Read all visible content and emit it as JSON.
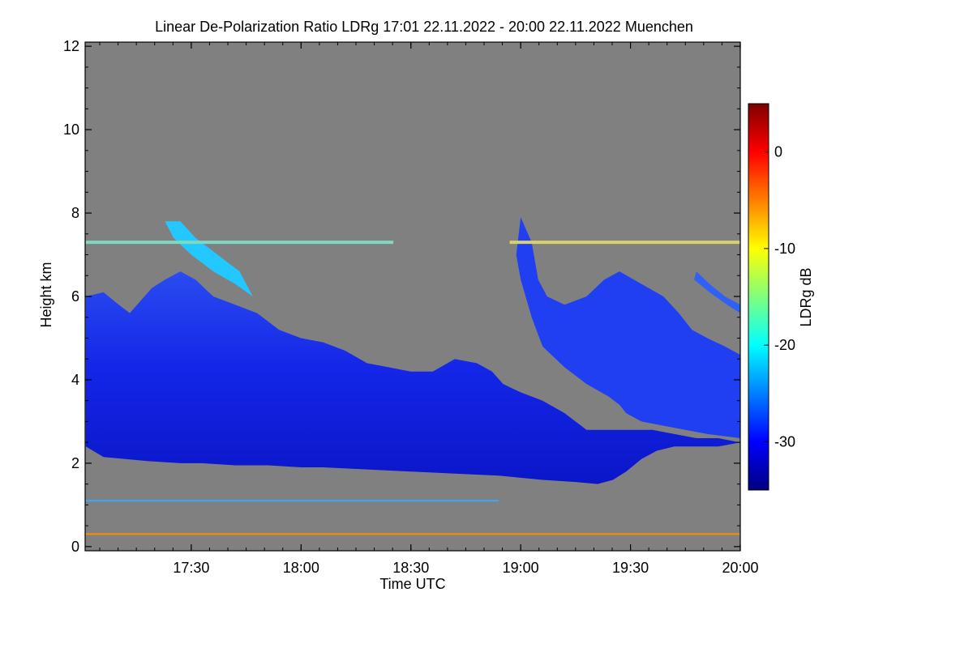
{
  "chart_data": {
    "type": "heatmap",
    "title": "Linear De-Polarization Ratio LDRg   17:01 22.11.2022 - 20:00 22.11.2022 Muenchen",
    "xlabel": "Time UTC",
    "ylabel": "Height km",
    "xlim_hours": [
      17.0167,
      20.0
    ],
    "ylim_km": [
      -0.1,
      12.1
    ],
    "x_ticks": [
      {
        "label": "17:30",
        "value": 17.5
      },
      {
        "label": "18:00",
        "value": 18.0
      },
      {
        "label": "18:30",
        "value": 18.5
      },
      {
        "label": "19:00",
        "value": 19.0
      },
      {
        "label": "19:30",
        "value": 19.5
      },
      {
        "label": "20:00",
        "value": 20.0
      }
    ],
    "y_ticks": [
      {
        "label": "0",
        "value": 0
      },
      {
        "label": "2",
        "value": 2
      },
      {
        "label": "4",
        "value": 4
      },
      {
        "label": "6",
        "value": 6
      },
      {
        "label": "8",
        "value": 8
      },
      {
        "label": "10",
        "value": 10
      },
      {
        "label": "12",
        "value": 12
      }
    ],
    "colorbar": {
      "label": "LDRg dB",
      "range": [
        -35,
        5
      ],
      "ticks": [
        {
          "label": "0",
          "value": 0
        },
        {
          "label": "-10",
          "value": -10
        },
        {
          "label": "-20",
          "value": -20
        },
        {
          "label": "-30",
          "value": -30
        }
      ],
      "colors": [
        "#00007f",
        "#0000ff",
        "#007fff",
        "#00ffff",
        "#7fff7f",
        "#ffff00",
        "#ff7f00",
        "#ff0000",
        "#7f0000"
      ]
    },
    "background_color": "#808080",
    "features": [
      {
        "name": "main-cloud-layer",
        "ldr_db": -31,
        "color": "#1f2fe6",
        "top_km": [
          [
            17.02,
            6.0
          ],
          [
            17.1,
            6.1
          ],
          [
            17.17,
            5.8
          ],
          [
            17.22,
            5.6
          ],
          [
            17.27,
            5.9
          ],
          [
            17.32,
            6.2
          ],
          [
            17.38,
            6.4
          ],
          [
            17.45,
            6.6
          ],
          [
            17.52,
            6.4
          ],
          [
            17.6,
            6.0
          ],
          [
            17.7,
            5.8
          ],
          [
            17.8,
            5.6
          ],
          [
            17.9,
            5.2
          ],
          [
            18.0,
            5.0
          ],
          [
            18.1,
            4.9
          ],
          [
            18.2,
            4.7
          ],
          [
            18.3,
            4.4
          ],
          [
            18.4,
            4.3
          ],
          [
            18.5,
            4.2
          ],
          [
            18.6,
            4.2
          ],
          [
            18.7,
            4.5
          ],
          [
            18.8,
            4.4
          ],
          [
            18.87,
            4.2
          ],
          [
            18.92,
            3.9
          ],
          [
            19.0,
            3.7
          ],
          [
            19.1,
            3.5
          ],
          [
            19.2,
            3.2
          ],
          [
            19.3,
            2.8
          ],
          [
            19.4,
            2.8
          ],
          [
            19.5,
            2.8
          ],
          [
            19.6,
            2.8
          ],
          [
            19.7,
            2.7
          ],
          [
            19.8,
            2.6
          ],
          [
            19.9,
            2.6
          ],
          [
            20.0,
            2.5
          ]
        ],
        "base_km": [
          [
            20.0,
            2.5
          ],
          [
            19.9,
            2.4
          ],
          [
            19.8,
            2.4
          ],
          [
            19.7,
            2.4
          ],
          [
            19.62,
            2.3
          ],
          [
            19.55,
            2.1
          ],
          [
            19.48,
            1.8
          ],
          [
            19.42,
            1.6
          ],
          [
            19.35,
            1.5
          ],
          [
            19.25,
            1.55
          ],
          [
            19.1,
            1.6
          ],
          [
            19.0,
            1.65
          ],
          [
            18.9,
            1.7
          ],
          [
            18.7,
            1.75
          ],
          [
            18.5,
            1.8
          ],
          [
            18.3,
            1.85
          ],
          [
            18.1,
            1.9
          ],
          [
            18.0,
            1.9
          ],
          [
            17.85,
            1.95
          ],
          [
            17.7,
            1.95
          ],
          [
            17.55,
            2.0
          ],
          [
            17.45,
            2.0
          ],
          [
            17.3,
            2.05
          ],
          [
            17.2,
            2.1
          ],
          [
            17.1,
            2.15
          ],
          [
            17.02,
            2.4
          ]
        ]
      },
      {
        "name": "fallstreak-cloud-1900",
        "ldr_db": -29,
        "color": "#1f3ff0",
        "outline_km": [
          [
            19.0,
            7.9
          ],
          [
            19.05,
            7.3
          ],
          [
            19.08,
            6.4
          ],
          [
            19.12,
            6.0
          ],
          [
            19.2,
            5.8
          ],
          [
            19.3,
            6.0
          ],
          [
            19.38,
            6.4
          ],
          [
            19.45,
            6.6
          ],
          [
            19.55,
            6.3
          ],
          [
            19.65,
            6.0
          ],
          [
            19.72,
            5.6
          ],
          [
            19.78,
            5.2
          ],
          [
            19.85,
            5.0
          ],
          [
            19.93,
            4.8
          ],
          [
            20.0,
            4.6
          ],
          [
            20.0,
            2.6
          ],
          [
            19.85,
            2.7
          ],
          [
            19.75,
            2.8
          ],
          [
            19.65,
            2.9
          ],
          [
            19.55,
            3.0
          ],
          [
            19.48,
            3.2
          ],
          [
            19.45,
            3.4
          ],
          [
            19.4,
            3.6
          ],
          [
            19.3,
            3.9
          ],
          [
            19.2,
            4.3
          ],
          [
            19.1,
            4.8
          ],
          [
            19.05,
            5.5
          ],
          [
            19.0,
            6.4
          ],
          [
            18.98,
            7.0
          ]
        ]
      },
      {
        "name": "upper-streak-1945",
        "ldr_db": -27,
        "color": "#3060f5",
        "outline_km": [
          [
            19.8,
            6.6
          ],
          [
            19.86,
            6.3
          ],
          [
            19.93,
            6.0
          ],
          [
            20.0,
            5.8
          ],
          [
            20.0,
            5.6
          ],
          [
            19.94,
            5.8
          ],
          [
            19.86,
            6.1
          ],
          [
            19.79,
            6.4
          ]
        ]
      },
      {
        "name": "ice-crystal-region",
        "ldr_db": -22,
        "color": "#22c8ff",
        "outline_km": [
          [
            17.38,
            7.8
          ],
          [
            17.42,
            7.4
          ],
          [
            17.5,
            7.0
          ],
          [
            17.6,
            6.6
          ],
          [
            17.7,
            6.3
          ],
          [
            17.78,
            6.0
          ],
          [
            17.72,
            6.6
          ],
          [
            17.62,
            7.0
          ],
          [
            17.52,
            7.4
          ],
          [
            17.45,
            7.8
          ]
        ]
      }
    ],
    "horizontal_lines": [
      {
        "name": "layer-7.3km-left",
        "height_km": 7.3,
        "x_hours": [
          17.02,
          18.42
        ],
        "color": "#7fd8c0"
      },
      {
        "name": "layer-7.3km-right",
        "height_km": 7.3,
        "x_hours": [
          18.95,
          20.0
        ],
        "color": "#d8d070"
      },
      {
        "name": "layer-1.1km",
        "height_km": 1.1,
        "x_hours": [
          17.02,
          18.9
        ],
        "color": "#3aa8ff"
      },
      {
        "name": "layer-0.3km",
        "height_km": 0.3,
        "x_hours": [
          17.02,
          20.0
        ],
        "color": "#ff8c00"
      }
    ]
  }
}
